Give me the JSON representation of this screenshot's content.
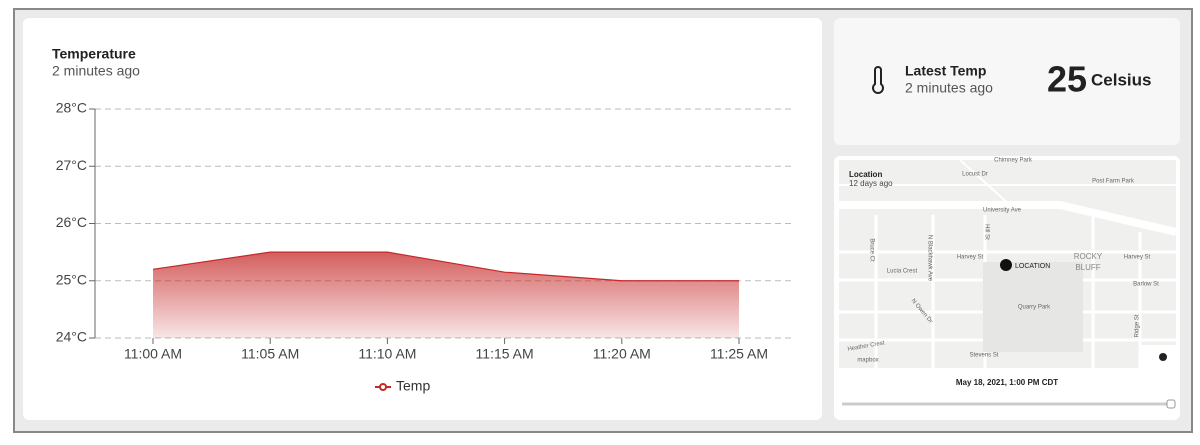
{
  "chart_data": {
    "type": "area",
    "title": "Temperature",
    "subtitle": "2 minutes ago",
    "categories": [
      "11:00 AM",
      "11:05 AM",
      "11:10 AM",
      "11:15 AM",
      "11:20 AM",
      "11:25 AM"
    ],
    "series": [
      {
        "name": "Temp",
        "color": "#c62828",
        "values": [
          25.2,
          25.5,
          25.5,
          25.15,
          25.0,
          25.0
        ]
      }
    ],
    "ylim": [
      24,
      28
    ],
    "yticks": [
      {
        "value": 24,
        "label": "24°C"
      },
      {
        "value": 25,
        "label": "25°C"
      },
      {
        "value": 26,
        "label": "26°C"
      },
      {
        "value": 27,
        "label": "27°C"
      },
      {
        "value": 28,
        "label": "28°C"
      }
    ],
    "grid": true
  },
  "stat": {
    "title": "Latest Temp",
    "subtitle": "2 minutes ago",
    "value": "25",
    "unit": "Celsius"
  },
  "map": {
    "title": "Location",
    "subtitle": "12 days ago",
    "marker": "LOCATION",
    "labels": [
      "Chimney Park",
      "Locust Dr",
      "Post Farm Park",
      "University Ave",
      "Bruce Ct",
      "N Blackhawk Ave",
      "Hill St",
      "Harvey St",
      "Lucia Crest",
      "ROCKY",
      "BLUFF",
      "Harvey St",
      "Barlow St",
      "N Owen Dr",
      "Quarry Park",
      "Heather Crest",
      "Stevens St",
      "Ridge St",
      "mapbox"
    ],
    "timestamp": "May 18, 2021, 1:00 PM CDT"
  }
}
